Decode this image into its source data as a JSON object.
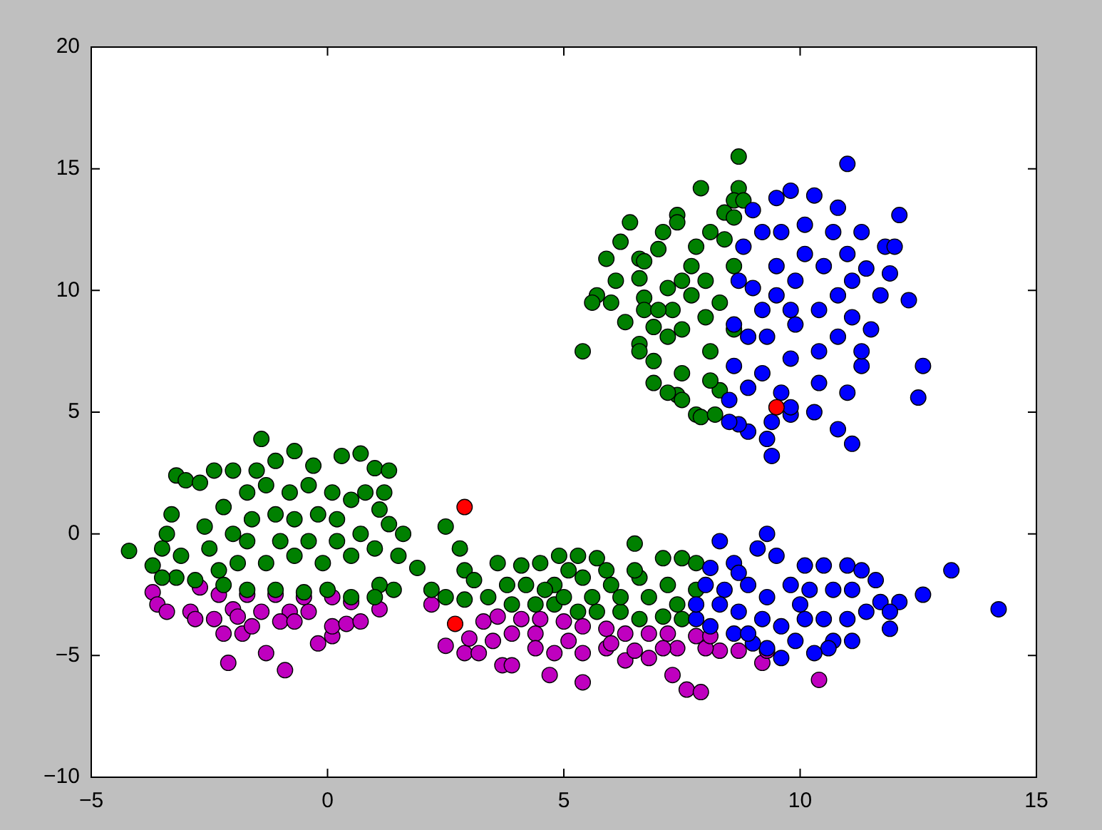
{
  "chart_data": {
    "type": "scatter",
    "marker": "circle",
    "xlim": [
      -5,
      15
    ],
    "ylim": [
      -10,
      20
    ],
    "xticks": [
      {
        "value": -5,
        "label": "−5"
      },
      0,
      5,
      10,
      15
    ],
    "yticks": [
      {
        "value": -10,
        "label": "−10"
      },
      {
        "value": -5,
        "label": "−5"
      },
      0,
      5,
      10,
      15,
      20
    ],
    "series": [
      {
        "color": "#bf00bf",
        "x": [
          -3.7,
          -3.6,
          -3.4,
          -2.9,
          -2.8,
          -2.7,
          -2.4,
          -2.2,
          -2.1,
          -1.8,
          -1.3,
          -0.9,
          -0.2,
          0.1,
          0.1,
          0.4,
          0.7,
          1.1,
          0.5,
          0.1,
          -0.5,
          -1.1,
          -1.7,
          -2.3,
          -2.0,
          -1.4,
          -0.8,
          -0.4,
          -1.0,
          -1.6,
          -0.7,
          -1.9,
          2.2,
          2.5,
          2.9,
          3.0,
          3.2,
          3.3,
          3.5,
          3.7,
          3.9,
          3.9,
          3.6,
          4.4,
          4.7,
          4.8,
          5.4,
          5.4,
          5.9,
          6.3,
          6.8,
          7.3,
          7.6,
          7.9,
          7.4,
          7.8,
          8.3,
          8.7,
          9.2,
          10.4,
          9.3,
          4.5,
          5.0,
          5.4,
          5.9,
          6.3,
          6.8,
          7.2,
          5.1,
          6.0,
          7.1,
          8.0,
          4.1,
          4.4,
          6.5,
          8.1
        ],
        "values": [
          -2.4,
          -2.9,
          -3.2,
          -3.2,
          -3.5,
          -2.2,
          -3.5,
          -4.1,
          -5.3,
          -4.1,
          -4.9,
          -5.6,
          -4.5,
          -4.2,
          -3.8,
          -3.7,
          -3.6,
          -3.1,
          -2.8,
          -2.6,
          -2.6,
          -2.5,
          -2.5,
          -2.5,
          -3.1,
          -3.2,
          -3.2,
          -3.2,
          -3.6,
          -3.8,
          -3.6,
          -3.4,
          -2.9,
          -4.6,
          -4.9,
          -4.3,
          -4.9,
          -3.6,
          -4.4,
          -5.4,
          -5.4,
          -4.1,
          -3.4,
          -4.1,
          -5.8,
          -4.9,
          -6.1,
          -4.9,
          -4.7,
          -5.2,
          -5.1,
          -5.8,
          -6.4,
          -6.5,
          -4.7,
          -4.2,
          -4.8,
          -4.8,
          -5.3,
          -6.0,
          -4.8,
          -3.5,
          -3.6,
          -3.8,
          -3.9,
          -4.1,
          -4.1,
          -4.1,
          -4.4,
          -4.5,
          -4.7,
          -4.7,
          -3.5,
          -4.7,
          -4.8,
          -4.2
        ]
      },
      {
        "color": "#008000",
        "x": [
          8.7,
          7.9,
          8.7,
          8.6,
          8.4,
          7.4,
          7.4,
          7.1,
          6.4,
          6.2,
          5.9,
          6.6,
          6.7,
          7.0,
          6.1,
          6.6,
          5.7,
          5.6,
          6.0,
          6.7,
          6.3,
          6.7,
          6.9,
          5.4,
          6.6,
          6.6,
          6.9,
          6.9,
          7.4,
          7.5,
          7.8,
          7.9,
          8.2,
          8.3,
          7.5,
          7.2,
          7.3,
          7.5,
          7.7,
          7.8,
          8.1,
          8.0,
          8.0,
          8.1,
          8.3,
          8.6,
          8.6,
          8.4,
          7.7,
          7.5,
          7.2,
          7.0,
          8.1,
          7.2,
          8.6,
          8.8,
          -4.2,
          -3.7,
          -3.5,
          -3.4,
          -3.3,
          -3.2,
          -3.0,
          -2.7,
          -2.4,
          -2.0,
          -1.5,
          -1.4,
          -1.1,
          -0.7,
          -0.3,
          0.3,
          0.7,
          1.0,
          1.3,
          1.1,
          0.8,
          1.6,
          1.5,
          1.9,
          1.4,
          1.1,
          1.0,
          0.5,
          0.0,
          -0.5,
          -1.1,
          -1.7,
          -2.2,
          -2.8,
          -3.2,
          -3.5,
          -3.1,
          -2.6,
          -2.2,
          -1.7,
          -1.3,
          -0.8,
          -0.4,
          0.1,
          0.5,
          -2.5,
          -2.0,
          -1.6,
          -1.1,
          -0.7,
          -0.2,
          0.2,
          0.7,
          1.0,
          0.5,
          -0.1,
          -0.7,
          -1.3,
          -1.9,
          -2.3,
          -1.0,
          -0.4,
          -1.7,
          0.2,
          1.2,
          1.3,
          2.5,
          2.8,
          2.2,
          2.5,
          2.9,
          2.9,
          3.1,
          3.4,
          3.6,
          3.8,
          4.1,
          4.5,
          4.9,
          5.3,
          5.7,
          6.5,
          7.1,
          7.5,
          7.8,
          7.8,
          7.5,
          7.1,
          6.6,
          6.2,
          5.7,
          5.3,
          4.8,
          4.4,
          3.9,
          4.2,
          4.8,
          5.4,
          6.0,
          6.6,
          7.2,
          7.4,
          6.8,
          6.2,
          5.6,
          5.0,
          4.6,
          5.9,
          6.5,
          5.1
        ],
        "values": [
          15.5,
          14.2,
          14.2,
          13.7,
          13.2,
          13.1,
          12.8,
          12.4,
          12.8,
          12.0,
          11.3,
          11.3,
          11.2,
          11.7,
          10.4,
          10.5,
          9.8,
          9.5,
          9.5,
          9.7,
          8.7,
          9.2,
          8.5,
          7.5,
          7.8,
          7.5,
          7.1,
          6.2,
          5.7,
          5.5,
          4.9,
          4.8,
          4.9,
          5.9,
          6.6,
          8.1,
          9.2,
          10.4,
          11.0,
          11.8,
          12.4,
          10.4,
          8.9,
          7.5,
          9.5,
          11.0,
          8.4,
          12.1,
          9.8,
          8.4,
          10.1,
          9.2,
          6.3,
          5.8,
          13.0,
          13.7,
          -0.7,
          -1.3,
          -0.6,
          0.0,
          0.8,
          2.4,
          2.2,
          2.1,
          2.6,
          2.6,
          2.6,
          3.9,
          3.0,
          3.4,
          2.8,
          3.2,
          3.3,
          2.7,
          2.6,
          1.0,
          1.7,
          0.0,
          -0.9,
          -1.4,
          -2.3,
          -2.1,
          -2.6,
          -2.6,
          -2.3,
          -2.4,
          -2.3,
          -2.3,
          -2.1,
          -1.9,
          -1.8,
          -1.8,
          -0.9,
          0.3,
          1.1,
          1.7,
          2.0,
          1.7,
          2.0,
          1.7,
          1.4,
          -0.6,
          0.0,
          0.6,
          0.8,
          0.6,
          0.8,
          0.6,
          0.0,
          -0.6,
          -0.9,
          -1.2,
          -0.9,
          -1.2,
          -1.2,
          -1.5,
          -0.3,
          -0.3,
          -0.3,
          -0.3,
          1.7,
          0.4,
          0.3,
          -0.6,
          -2.3,
          -2.6,
          -2.7,
          -1.5,
          -1.9,
          -2.6,
          -1.2,
          -2.1,
          -1.3,
          -1.2,
          -0.9,
          -0.9,
          -1.0,
          -0.4,
          -1.0,
          -1.0,
          -1.2,
          -2.3,
          -3.5,
          -3.4,
          -3.5,
          -3.2,
          -3.2,
          -3.2,
          -2.9,
          -2.9,
          -2.9,
          -2.1,
          -2.1,
          -1.8,
          -2.1,
          -1.8,
          -2.1,
          -2.9,
          -2.6,
          -2.6,
          -2.6,
          -2.6,
          -2.3,
          -1.5,
          -1.5,
          -1.5
        ]
      },
      {
        "color": "#0000ff",
        "x": [
          11.0,
          9.5,
          9.8,
          10.3,
          10.8,
          12.1,
          11.3,
          11.8,
          12.0,
          11.4,
          11.9,
          11.7,
          12.3,
          11.5,
          11.3,
          12.6,
          12.5,
          11.0,
          10.8,
          11.1,
          10.3,
          9.8,
          9.4,
          9.3,
          8.9,
          8.7,
          8.5,
          8.5,
          8.6,
          8.6,
          8.7,
          8.8,
          9.0,
          9.2,
          9.6,
          10.1,
          10.7,
          11.0,
          10.5,
          9.9,
          9.5,
          9.2,
          8.9,
          9.3,
          9.9,
          10.4,
          10.8,
          11.1,
          10.8,
          10.4,
          9.8,
          9.2,
          8.9,
          9.6,
          10.4,
          11.3,
          9.5,
          10.1,
          11.1,
          9.8,
          9.0,
          9.4,
          9.8,
          9.3,
          8.3,
          8.1,
          8.6,
          9.1,
          9.5,
          10.1,
          10.5,
          11.0,
          11.3,
          11.6,
          11.7,
          12.1,
          11.9,
          11.9,
          12.6,
          13.2,
          14.2,
          11.1,
          10.7,
          10.6,
          10.3,
          9.9,
          9.6,
          9.3,
          9.0,
          8.6,
          8.1,
          7.8,
          7.8,
          8.0,
          8.4,
          8.9,
          9.3,
          9.8,
          10.2,
          10.7,
          11.1,
          11.4,
          11.0,
          10.5,
          10.1,
          9.6,
          9.2,
          8.7,
          8.3,
          8.9,
          10.0,
          8.7
        ],
        "values": [
          15.2,
          13.8,
          14.1,
          13.9,
          13.4,
          13.1,
          12.4,
          11.8,
          11.8,
          10.9,
          10.7,
          9.8,
          9.6,
          8.4,
          6.9,
          6.9,
          5.6,
          5.8,
          4.3,
          3.7,
          5.0,
          4.9,
          3.2,
          3.9,
          4.2,
          4.5,
          4.6,
          5.5,
          6.9,
          8.6,
          10.4,
          11.8,
          13.3,
          12.4,
          12.4,
          12.7,
          12.4,
          11.5,
          11.0,
          10.4,
          9.8,
          9.2,
          8.1,
          8.1,
          8.6,
          9.2,
          9.8,
          8.9,
          8.1,
          7.5,
          7.2,
          6.6,
          6.0,
          5.8,
          6.2,
          7.5,
          11.0,
          11.5,
          10.4,
          9.2,
          10.1,
          4.6,
          5.2,
          0.0,
          -0.3,
          -1.4,
          -1.2,
          -0.6,
          -0.9,
          -1.3,
          -1.3,
          -1.3,
          -1.5,
          -1.9,
          -2.8,
          -2.8,
          -3.2,
          -3.9,
          -2.5,
          -1.5,
          -3.1,
          -4.4,
          -4.4,
          -4.7,
          -4.9,
          -4.4,
          -5.1,
          -4.7,
          -4.5,
          -4.1,
          -3.8,
          -3.5,
          -2.9,
          -2.1,
          -2.3,
          -2.1,
          -2.6,
          -2.1,
          -2.3,
          -2.3,
          -2.3,
          -3.2,
          -3.5,
          -3.5,
          -3.5,
          -3.8,
          -3.5,
          -3.2,
          -2.9,
          -4.1,
          -2.9,
          -1.6
        ]
      },
      {
        "color": "#ff0000",
        "x": [
          9.5,
          2.9,
          2.7
        ],
        "values": [
          5.2,
          1.1,
          -3.7
        ]
      }
    ]
  }
}
